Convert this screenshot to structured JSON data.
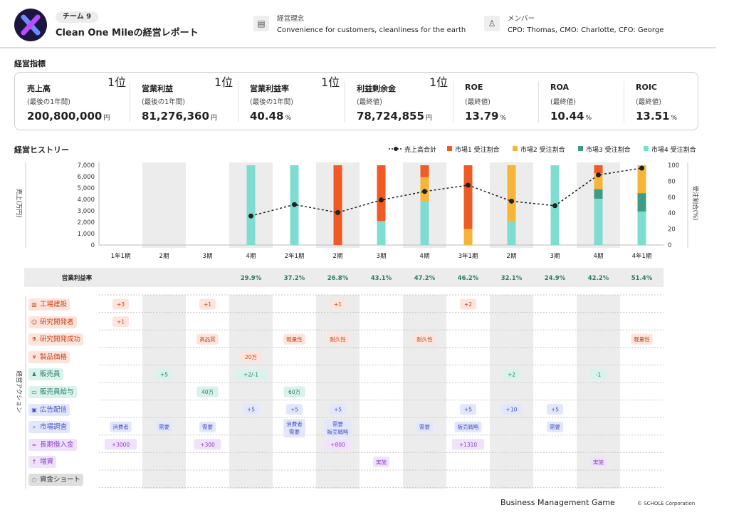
{
  "header": {
    "team_badge": "チーム 9",
    "title": "Clean One Mileの経営レポート",
    "philosophy_label": "経営理念",
    "philosophy_value": "Convenience for customers, cleanliness for the earth",
    "members_label": "メンバー",
    "members_value": "CPO: Thomas, CMO: Charlotte, CFO: George",
    "philosophy_icon": "building-icon",
    "members_icon": "person-icon"
  },
  "indicators": {
    "section_title": "経営指標",
    "kpis": [
      {
        "name": "売上高",
        "sub": "(最後の1年間)",
        "value": "200,800,000",
        "unit": "円",
        "rank": "1位"
      },
      {
        "name": "営業利益",
        "sub": "(最後の1年間)",
        "value": "81,276,360",
        "unit": "円",
        "rank": "1位"
      },
      {
        "name": "営業利益率",
        "sub": "(最後の1年間)",
        "value": "40.48",
        "unit": "%",
        "rank": "1位"
      },
      {
        "name": "利益剰余金",
        "sub": "(最終値)",
        "value": "78,724,855",
        "unit": "円",
        "rank": "1位"
      },
      {
        "name": "ROE",
        "sub": "(最終値)",
        "value": "13.79",
        "unit": "%",
        "rank": ""
      },
      {
        "name": "ROA",
        "sub": "(最終値)",
        "value": "10.44",
        "unit": "%",
        "rank": ""
      },
      {
        "name": "ROIC",
        "sub": "(最終値)",
        "value": "13.51",
        "unit": "%",
        "rank": ""
      }
    ]
  },
  "history": {
    "section_title": "経営ヒストリー",
    "legend": [
      "売上高合計",
      "市場1 受注割合",
      "市場2 受注割合",
      "市場3 受注割合",
      "市場4 受注割合"
    ],
    "colors": {
      "m1": "#f05a24",
      "m2": "#f7b538",
      "m3": "#3f9a86",
      "m4": "#7fdcd0",
      "line": "#222222",
      "shade": "#ececec"
    },
    "left_axis_label": "売上(万円)",
    "right_axis_label": "受注割合(%)",
    "margin_label": "営業利益率",
    "actions_label": "経営アクション"
  },
  "chart_data": {
    "type": "bar",
    "categories": [
      "1年1期",
      "2期",
      "3期",
      "4期",
      "2年1期",
      "2期",
      "3期",
      "4期",
      "3年1期",
      "2期",
      "3期",
      "4期",
      "4年1期"
    ],
    "y_left_ticks": [
      0,
      1000,
      2000,
      3000,
      4000,
      5000,
      6000,
      7000
    ],
    "y_left_range": [
      0,
      7000
    ],
    "y_right_ticks": [
      0,
      20,
      40,
      60,
      80,
      100
    ],
    "y_right_range": [
      0,
      100
    ],
    "sales_total": [
      null,
      null,
      null,
      2550,
      3550,
      2850,
      3950,
      4700,
      5250,
      3850,
      3450,
      6150,
      6750
    ],
    "series": [
      {
        "name": "市場1 受注割合",
        "values": [
          0,
          0,
          0,
          0,
          0,
          100,
          70,
          15,
          80,
          0,
          0,
          10,
          0
        ]
      },
      {
        "name": "市場2 受注割合",
        "values": [
          0,
          0,
          0,
          0,
          0,
          0,
          0,
          30,
          20,
          70,
          0,
          20,
          35
        ]
      },
      {
        "name": "市場3 受注割合",
        "values": [
          0,
          0,
          0,
          0,
          0,
          0,
          0,
          0,
          0,
          0,
          0,
          12,
          23
        ]
      },
      {
        "name": "市場4 受注割合",
        "values": [
          0,
          0,
          0,
          100,
          100,
          0,
          30,
          55,
          0,
          30,
          100,
          58,
          42
        ]
      }
    ],
    "margins": [
      "",
      "",
      "",
      "29.9%",
      "37.2%",
      "26.8%",
      "43.1%",
      "47.2%",
      "46.2%",
      "32.1%",
      "24.9%",
      "42.2%",
      "51.4%"
    ],
    "grid": false,
    "legend_position": "top-right"
  },
  "actions": [
    {
      "label": "工場建設",
      "icon": "factory-icon",
      "bg": "#fde4dc",
      "fg": "#c8431c",
      "cells": {
        "0": "+3",
        "2": "+1",
        "5": "+1",
        "8": "+2"
      }
    },
    {
      "label": "研究開発者",
      "icon": "researcher-icon",
      "bg": "#fde4dc",
      "fg": "#c8431c",
      "cells": {
        "0": "+1"
      }
    },
    {
      "label": "研究開発成功",
      "icon": "flask-icon",
      "bg": "#fde4dc",
      "fg": "#c8431c",
      "cells": {
        "2": "高品質",
        "4": "軽量性",
        "5": "耐久性",
        "7": "耐久性",
        "12": "軽量性"
      }
    },
    {
      "label": "製品価格",
      "icon": "price-icon",
      "bg": "#fde4dc",
      "fg": "#c8431c",
      "cells": {
        "3": "20万"
      }
    },
    {
      "label": "販売員",
      "icon": "salesperson-icon",
      "bg": "#daf2ec",
      "fg": "#2a7d6b",
      "cells": {
        "1": "+5",
        "3": "+2/-1",
        "9": "+2",
        "11": "-1"
      }
    },
    {
      "label": "販売員給与",
      "icon": "salary-icon",
      "bg": "#daf2ec",
      "fg": "#2a7d6b",
      "cells": {
        "2": "40万",
        "4": "60万"
      }
    },
    {
      "label": "広告配信",
      "icon": "ad-icon",
      "bg": "#e3e7fc",
      "fg": "#4a55c0",
      "cells": {
        "3": "+5",
        "4": "+5",
        "5": "+5",
        "8": "+5",
        "9": "+10",
        "10": "+5"
      }
    },
    {
      "label": "市場調査",
      "icon": "magnifier-icon",
      "bg": "#e3e7fc",
      "fg": "#4a55c0",
      "cells": {
        "0": "消費者",
        "1": "需要",
        "2": "需要",
        "4": "消費者|需要",
        "5": "需要|販売戦略",
        "7": "需要",
        "8": "販売戦略",
        "10": "需要"
      }
    },
    {
      "label": "長期借入金",
      "icon": "loan-icon",
      "bg": "#f0e2fb",
      "fg": "#8a3fc4",
      "cells": {
        "0": "+3000",
        "2": "+300",
        "5": "+800",
        "8": "+1310"
      }
    },
    {
      "label": "増資",
      "icon": "capital-icon",
      "bg": "#f0e2fb",
      "fg": "#8a3fc4",
      "cells": {
        "6": "実施",
        "11": "実施"
      }
    },
    {
      "label": "資金ショート",
      "icon": "shortage-icon",
      "bg": "#dedede",
      "fg": "#333333",
      "cells": {}
    }
  ],
  "footer": {
    "brand": "Business Management Game",
    "copyright": "© SCHOLE Corporation"
  }
}
